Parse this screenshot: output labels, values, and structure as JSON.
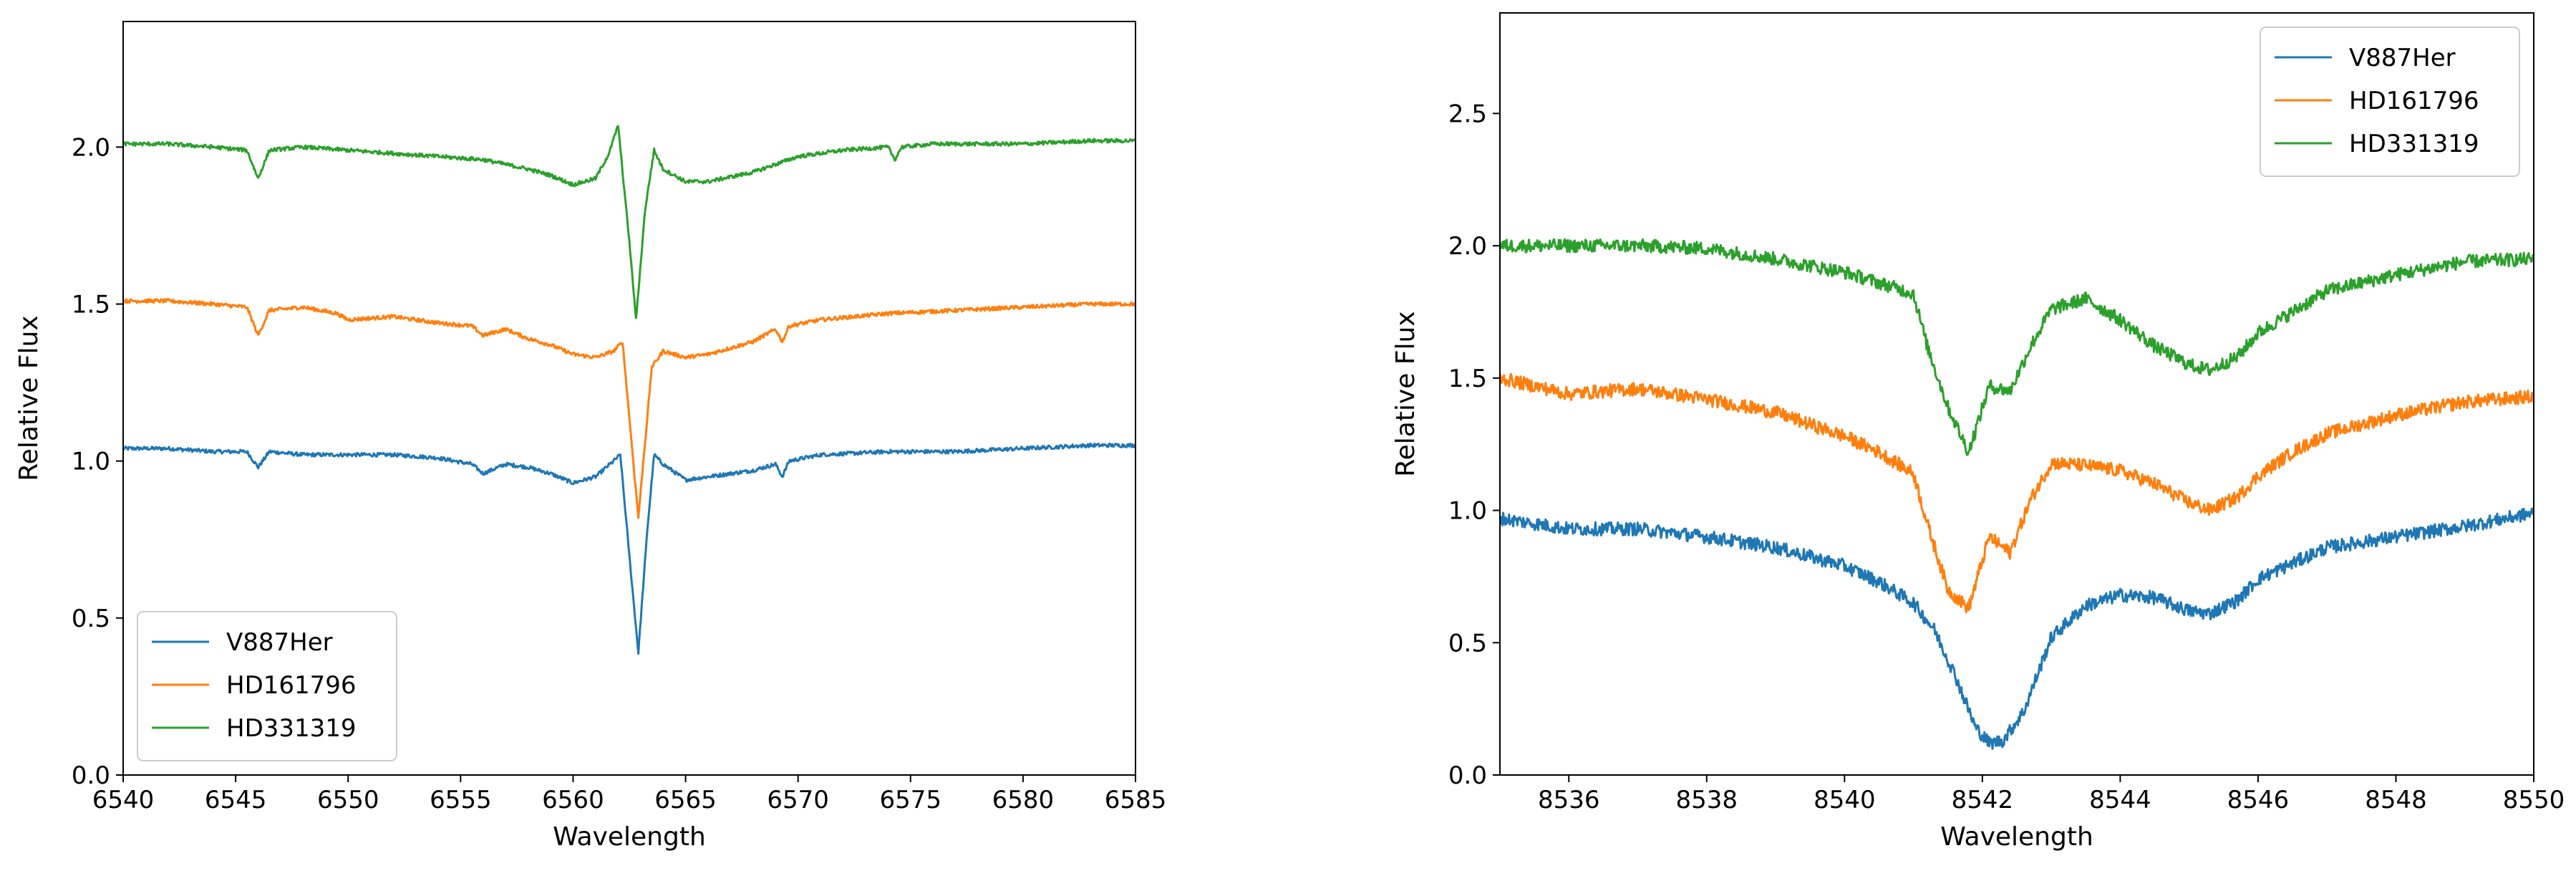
{
  "colors": {
    "V887Her": "#1f77b4",
    "HD161796": "#ff7f0e",
    "HD331319": "#2ca02c"
  },
  "chart_data": [
    {
      "type": "line",
      "xlabel": "Wavelength",
      "ylabel": "Relative Flux",
      "xlim": [
        6540,
        6585
      ],
      "ylim": [
        0.0,
        2.4
      ],
      "xticks": [
        6540,
        6545,
        6550,
        6555,
        6560,
        6565,
        6570,
        6575,
        6580,
        6585
      ],
      "yticks": [
        0.0,
        0.5,
        1.0,
        1.5,
        2.0
      ],
      "xtick_labels": [
        "6540",
        "6545",
        "6550",
        "6555",
        "6560",
        "6565",
        "6570",
        "6575",
        "6580",
        "6585"
      ],
      "ytick_labels": [
        "0.0",
        "0.5",
        "1.0",
        "1.5",
        "2.0"
      ],
      "legend_position": "lower left",
      "grid": false,
      "series": [
        {
          "name": "V887Her",
          "color_key": "V887Her",
          "x": [
            6540,
            6542,
            6544,
            6545.5,
            6546,
            6546.5,
            6548,
            6550,
            6552,
            6554,
            6555.5,
            6556,
            6557,
            6558,
            6559,
            6560,
            6561,
            6561.8,
            6562.1,
            6562.5,
            6562.9,
            6563.3,
            6563.6,
            6564,
            6565,
            6566,
            6568,
            6569,
            6569.3,
            6569.6,
            6571,
            6574,
            6577,
            6580,
            6583,
            6585
          ],
          "y": [
            1.04,
            1.04,
            1.03,
            1.03,
            0.98,
            1.03,
            1.02,
            1.02,
            1.02,
            1.01,
            0.99,
            0.96,
            0.99,
            0.98,
            0.96,
            0.93,
            0.95,
            1.0,
            1.02,
            0.7,
            0.39,
            0.78,
            1.02,
            0.99,
            0.94,
            0.95,
            0.97,
            0.99,
            0.95,
            1.0,
            1.02,
            1.03,
            1.03,
            1.04,
            1.05,
            1.05
          ]
        },
        {
          "name": "HD161796",
          "color_key": "HD161796",
          "x": [
            6540,
            6542,
            6544,
            6545.5,
            6546,
            6546.5,
            6548,
            6549.5,
            6550,
            6552,
            6554,
            6555.5,
            6556,
            6557,
            6558,
            6559,
            6560,
            6561,
            6561.8,
            6562.2,
            6562.9,
            6563.5,
            6564,
            6565,
            6566,
            6568,
            6569,
            6569.3,
            6569.6,
            6571,
            6574,
            6577,
            6580,
            6583,
            6585
          ],
          "y": [
            1.51,
            1.51,
            1.5,
            1.49,
            1.4,
            1.48,
            1.49,
            1.47,
            1.45,
            1.46,
            1.44,
            1.43,
            1.4,
            1.42,
            1.39,
            1.37,
            1.34,
            1.33,
            1.35,
            1.38,
            0.82,
            1.3,
            1.35,
            1.33,
            1.34,
            1.38,
            1.42,
            1.38,
            1.43,
            1.45,
            1.47,
            1.48,
            1.49,
            1.5,
            1.5
          ]
        },
        {
          "name": "HD331319",
          "color_key": "HD331319",
          "x": [
            6540,
            6542,
            6544,
            6545.5,
            6546,
            6546.5,
            6548,
            6550,
            6552,
            6554,
            6556,
            6558,
            6559,
            6560,
            6561,
            6561.6,
            6562.0,
            6562.5,
            6562.8,
            6563.2,
            6563.6,
            6564,
            6565,
            6566,
            6568,
            6570,
            6572,
            6574,
            6574.3,
            6574.6,
            6576,
            6578,
            6580,
            6583,
            6585
          ],
          "y": [
            2.01,
            2.01,
            2.0,
            1.99,
            1.9,
            1.99,
            2.0,
            1.99,
            1.98,
            1.97,
            1.96,
            1.93,
            1.91,
            1.88,
            1.9,
            1.98,
            2.07,
            1.7,
            1.45,
            1.8,
            1.99,
            1.93,
            1.89,
            1.89,
            1.92,
            1.97,
            1.99,
            2.0,
            1.96,
            2.0,
            2.01,
            2.01,
            2.01,
            2.02,
            2.02
          ]
        }
      ]
    },
    {
      "type": "line",
      "xlabel": "Wavelength",
      "ylabel": "Relative Flux",
      "xlim": [
        8535,
        8550
      ],
      "ylim": [
        0.0,
        2.88
      ],
      "xticks": [
        8536,
        8538,
        8540,
        8542,
        8544,
        8546,
        8548,
        8550
      ],
      "yticks": [
        0.0,
        0.5,
        1.0,
        1.5,
        2.0,
        2.5
      ],
      "xtick_labels": [
        "8536",
        "8538",
        "8540",
        "8542",
        "8544",
        "8546",
        "8548",
        "8550"
      ],
      "ytick_labels": [
        "0.0",
        "0.5",
        "1.0",
        "1.5",
        "2.0",
        "2.5"
      ],
      "legend_position": "upper right",
      "grid": false,
      "series": [
        {
          "name": "V887Her",
          "color_key": "V887Her",
          "x": [
            8535,
            8536,
            8537,
            8538,
            8539,
            8540,
            8540.5,
            8541,
            8541.3,
            8541.6,
            8541.9,
            8542.1,
            8542.3,
            8542.6,
            8543,
            8543.5,
            8544,
            8544.5,
            8545,
            8545.3,
            8545.7,
            8546,
            8546.5,
            8547,
            8548,
            8549,
            8550
          ],
          "y": [
            0.97,
            0.93,
            0.93,
            0.9,
            0.86,
            0.79,
            0.73,
            0.65,
            0.55,
            0.38,
            0.18,
            0.12,
            0.13,
            0.24,
            0.52,
            0.64,
            0.68,
            0.67,
            0.62,
            0.61,
            0.66,
            0.74,
            0.8,
            0.86,
            0.9,
            0.94,
            0.99
          ]
        },
        {
          "name": "HD161796",
          "color_key": "HD161796",
          "x": [
            8535,
            8536,
            8537,
            8538,
            8539,
            8540,
            8540.5,
            8541,
            8541.2,
            8541.5,
            8541.8,
            8542.1,
            8542.4,
            8542.7,
            8543,
            8543.5,
            8544,
            8544.5,
            8545,
            8545.3,
            8545.7,
            8546,
            8546.5,
            8547,
            8548,
            8549,
            8550
          ],
          "y": [
            1.5,
            1.44,
            1.46,
            1.42,
            1.37,
            1.28,
            1.22,
            1.14,
            0.95,
            0.7,
            0.63,
            0.9,
            0.84,
            1.04,
            1.18,
            1.17,
            1.15,
            1.1,
            1.03,
            1.0,
            1.05,
            1.13,
            1.22,
            1.29,
            1.36,
            1.41,
            1.43
          ]
        },
        {
          "name": "HD331319",
          "color_key": "HD331319",
          "x": [
            8535,
            8536,
            8537,
            8538,
            8539,
            8540,
            8540.5,
            8541,
            8541.2,
            8541.5,
            8541.8,
            8542.1,
            8542.4,
            8542.7,
            8543,
            8543.5,
            8544,
            8544.5,
            8545,
            8545.3,
            8545.7,
            8546,
            8546.5,
            8547,
            8548,
            8549,
            8550
          ],
          "y": [
            2.0,
            2.0,
            2.0,
            1.99,
            1.95,
            1.9,
            1.86,
            1.82,
            1.62,
            1.39,
            1.22,
            1.47,
            1.45,
            1.62,
            1.76,
            1.8,
            1.72,
            1.62,
            1.55,
            1.53,
            1.58,
            1.67,
            1.75,
            1.83,
            1.89,
            1.94,
            1.95
          ]
        }
      ]
    }
  ]
}
